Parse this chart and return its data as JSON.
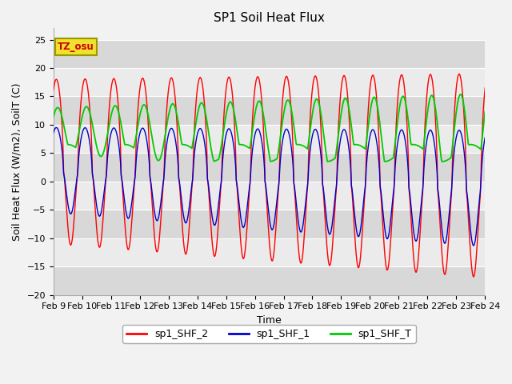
{
  "title": "SP1 Soil Heat Flux",
  "xlabel": "Time",
  "ylabel": "Soil Heat Flux (W/m2), SoilT (C)",
  "ylim": [
    -20,
    27
  ],
  "annotation_text": "TZ_osu",
  "xtick_labels": [
    "Feb 9",
    "Feb 10",
    "Feb 11",
    "Feb 12",
    "Feb 13",
    "Feb 14",
    "Feb 15",
    "Feb 16",
    "Feb 17",
    "Feb 18",
    "Feb 19",
    "Feb 20",
    "Feb 21",
    "Feb 22",
    "Feb 23",
    "Feb 24"
  ],
  "legend_labels": [
    "sp1_SHF_2",
    "sp1_SHF_1",
    "sp1_SHF_T"
  ],
  "color_SHF2": "#ff0000",
  "color_SHF1": "#0000cc",
  "color_SHFT": "#00cc00",
  "bg_band1": "#d8d8d8",
  "bg_band2": "#ebebeb",
  "title_fontsize": 11,
  "label_fontsize": 9,
  "tick_fontsize": 8
}
